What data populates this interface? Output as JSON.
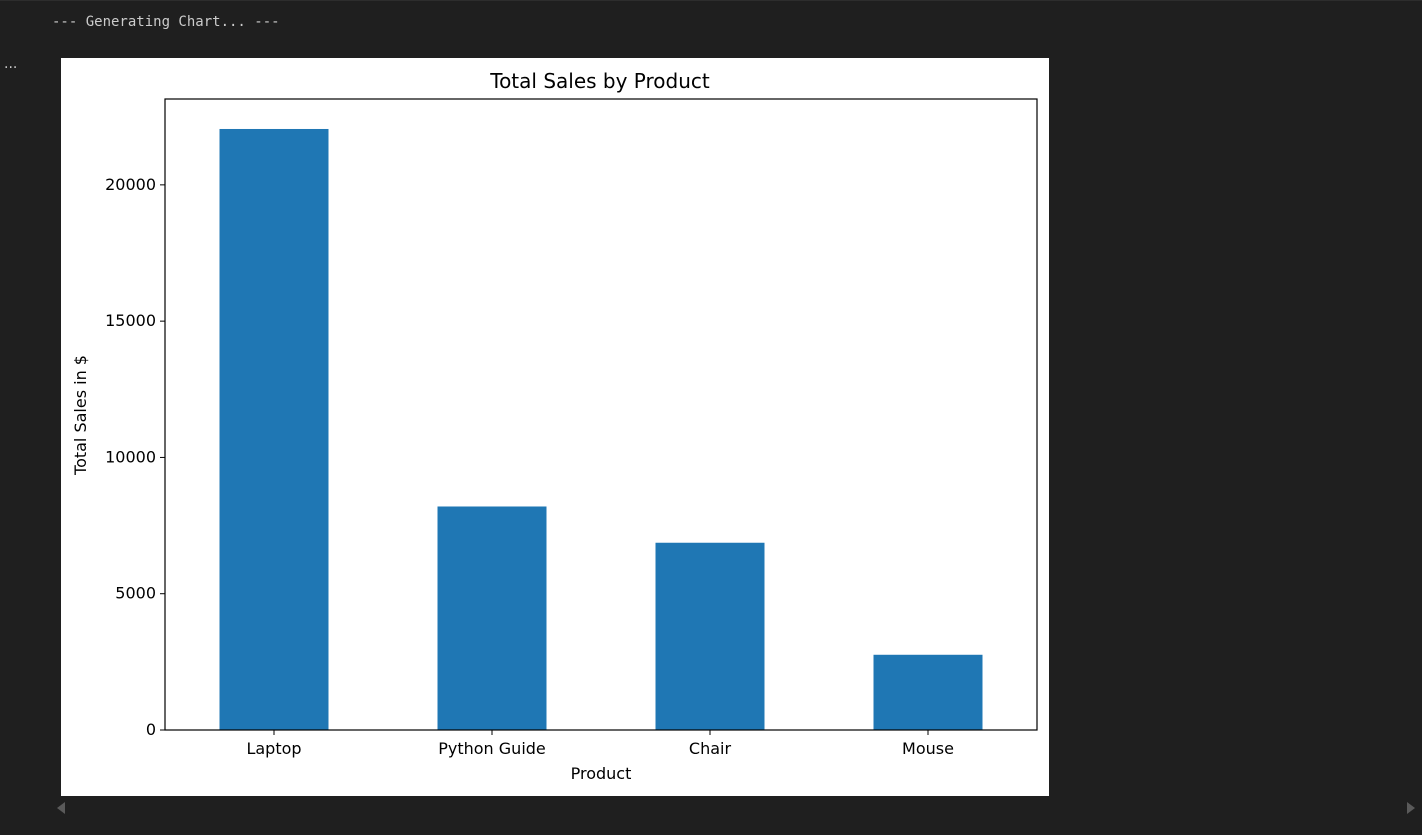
{
  "output": {
    "stdout_text": "--- Generating Chart... ---",
    "menu_label": "..."
  },
  "chart_data": {
    "type": "bar",
    "title": "Total Sales by Product",
    "xlabel": "Product",
    "ylabel": "Total Sales in $",
    "categories": [
      "Laptop",
      "Python Guide",
      "Chair",
      "Mouse"
    ],
    "values": [
      22050,
      8200,
      6870,
      2760
    ],
    "ylim": [
      0,
      23150
    ],
    "yticks": [
      0,
      5000,
      10000,
      15000,
      20000
    ],
    "ytick_labels": [
      "0",
      "5000",
      "10000",
      "15000",
      "20000"
    ],
    "grid": false,
    "legend": "none",
    "bar_color": "#1f77b4"
  },
  "colors": {
    "background": "#1f1f1f",
    "text": "#cccccc",
    "figure_background": "#ffffff"
  }
}
